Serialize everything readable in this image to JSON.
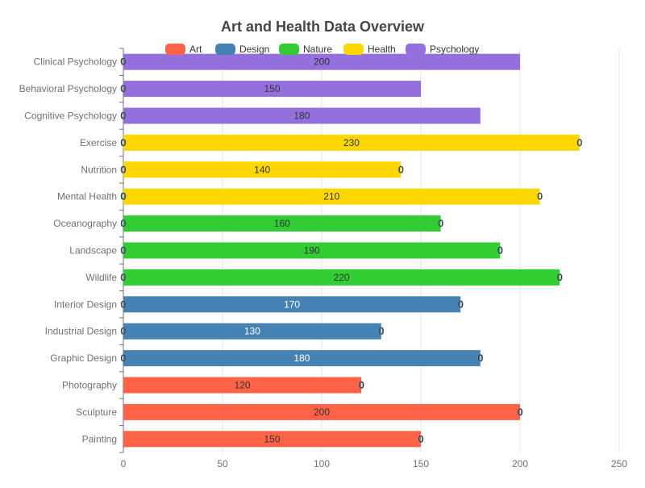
{
  "chart_data": {
    "type": "bar",
    "orientation": "horizontal",
    "title": "Art and Health Data Overview",
    "categories": [
      "Painting",
      "Sculpture",
      "Photography",
      "Graphic Design",
      "Industrial Design",
      "Interior Design",
      "Wildlife",
      "Landscape",
      "Oceanography",
      "Mental Health",
      "Nutrition",
      "Exercise",
      "Cognitive Psychology",
      "Behavioral Psychology",
      "Clinical Psychology"
    ],
    "series": [
      {
        "name": "Art",
        "color": "#FF6347",
        "label_color": "#333333",
        "values": [
          150,
          200,
          120,
          0,
          0,
          0,
          0,
          0,
          0,
          0,
          0,
          0,
          0,
          0,
          0
        ]
      },
      {
        "name": "Design",
        "color": "#4682B4",
        "label_color": "#ffffff",
        "values": [
          0,
          0,
          0,
          180,
          130,
          170,
          0,
          0,
          0,
          0,
          0,
          0,
          0,
          0,
          0
        ]
      },
      {
        "name": "Nature",
        "color": "#32CD32",
        "label_color": "#333333",
        "values": [
          0,
          0,
          0,
          0,
          0,
          0,
          220,
          190,
          160,
          0,
          0,
          0,
          0,
          0,
          0
        ]
      },
      {
        "name": "Health",
        "color": "#FFD700",
        "label_color": "#333333",
        "values": [
          0,
          0,
          0,
          0,
          0,
          0,
          0,
          0,
          0,
          210,
          140,
          230,
          0,
          0,
          0
        ]
      },
      {
        "name": "Psychology",
        "color": "#9370DB",
        "label_color": "#333333",
        "values": [
          0,
          0,
          0,
          0,
          0,
          0,
          0,
          0,
          0,
          0,
          0,
          0,
          180,
          150,
          200
        ]
      }
    ],
    "x_ticks": [
      0,
      50,
      100,
      150,
      200,
      250
    ],
    "xlim": [
      0,
      250
    ],
    "xlabel": "",
    "ylabel": "",
    "stacked": true,
    "data_labels": true,
    "grid": "vertical",
    "legend_position": "top-center"
  }
}
